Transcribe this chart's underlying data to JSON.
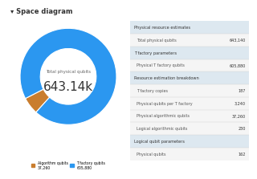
{
  "title": "▾ Space diagram",
  "donut_values": [
    37260,
    605880
  ],
  "donut_colors": [
    "#c97d2e",
    "#2b97f0"
  ],
  "donut_labels": [
    "Algorithm qubits\n37,260",
    "T factory qubits\n605,880"
  ],
  "center_label": "Total physical qubits",
  "center_value": "643.14k",
  "table_sections": [
    {
      "header": "Physical resource estimates",
      "rows": []
    },
    {
      "header": null,
      "rows": [
        [
          "Total physical qubits",
          "643,140"
        ]
      ]
    },
    {
      "header": "T factory parameters",
      "rows": []
    },
    {
      "header": null,
      "rows": [
        [
          "Physical T factory qubits",
          "605,880"
        ]
      ]
    },
    {
      "header": "Resource estimation breakdown",
      "rows": []
    },
    {
      "header": null,
      "rows": [
        [
          "T factory copies",
          "187"
        ],
        [
          "Physical qubits per T factory",
          "3,240"
        ],
        [
          "Physical algorithmic qubits",
          "37,260"
        ],
        [
          "Logical algorithmic qubits",
          "230"
        ]
      ]
    },
    {
      "header": "Logical qubit parameters",
      "rows": []
    },
    {
      "header": null,
      "rows": [
        [
          "Physical qubits",
          "162"
        ]
      ]
    }
  ],
  "bg_color": "#ffffff",
  "header_bg": "#dde8f0",
  "row_bg": "#f5f5f5",
  "title_color": "#333333",
  "text_color": "#555555",
  "value_color": "#333333"
}
